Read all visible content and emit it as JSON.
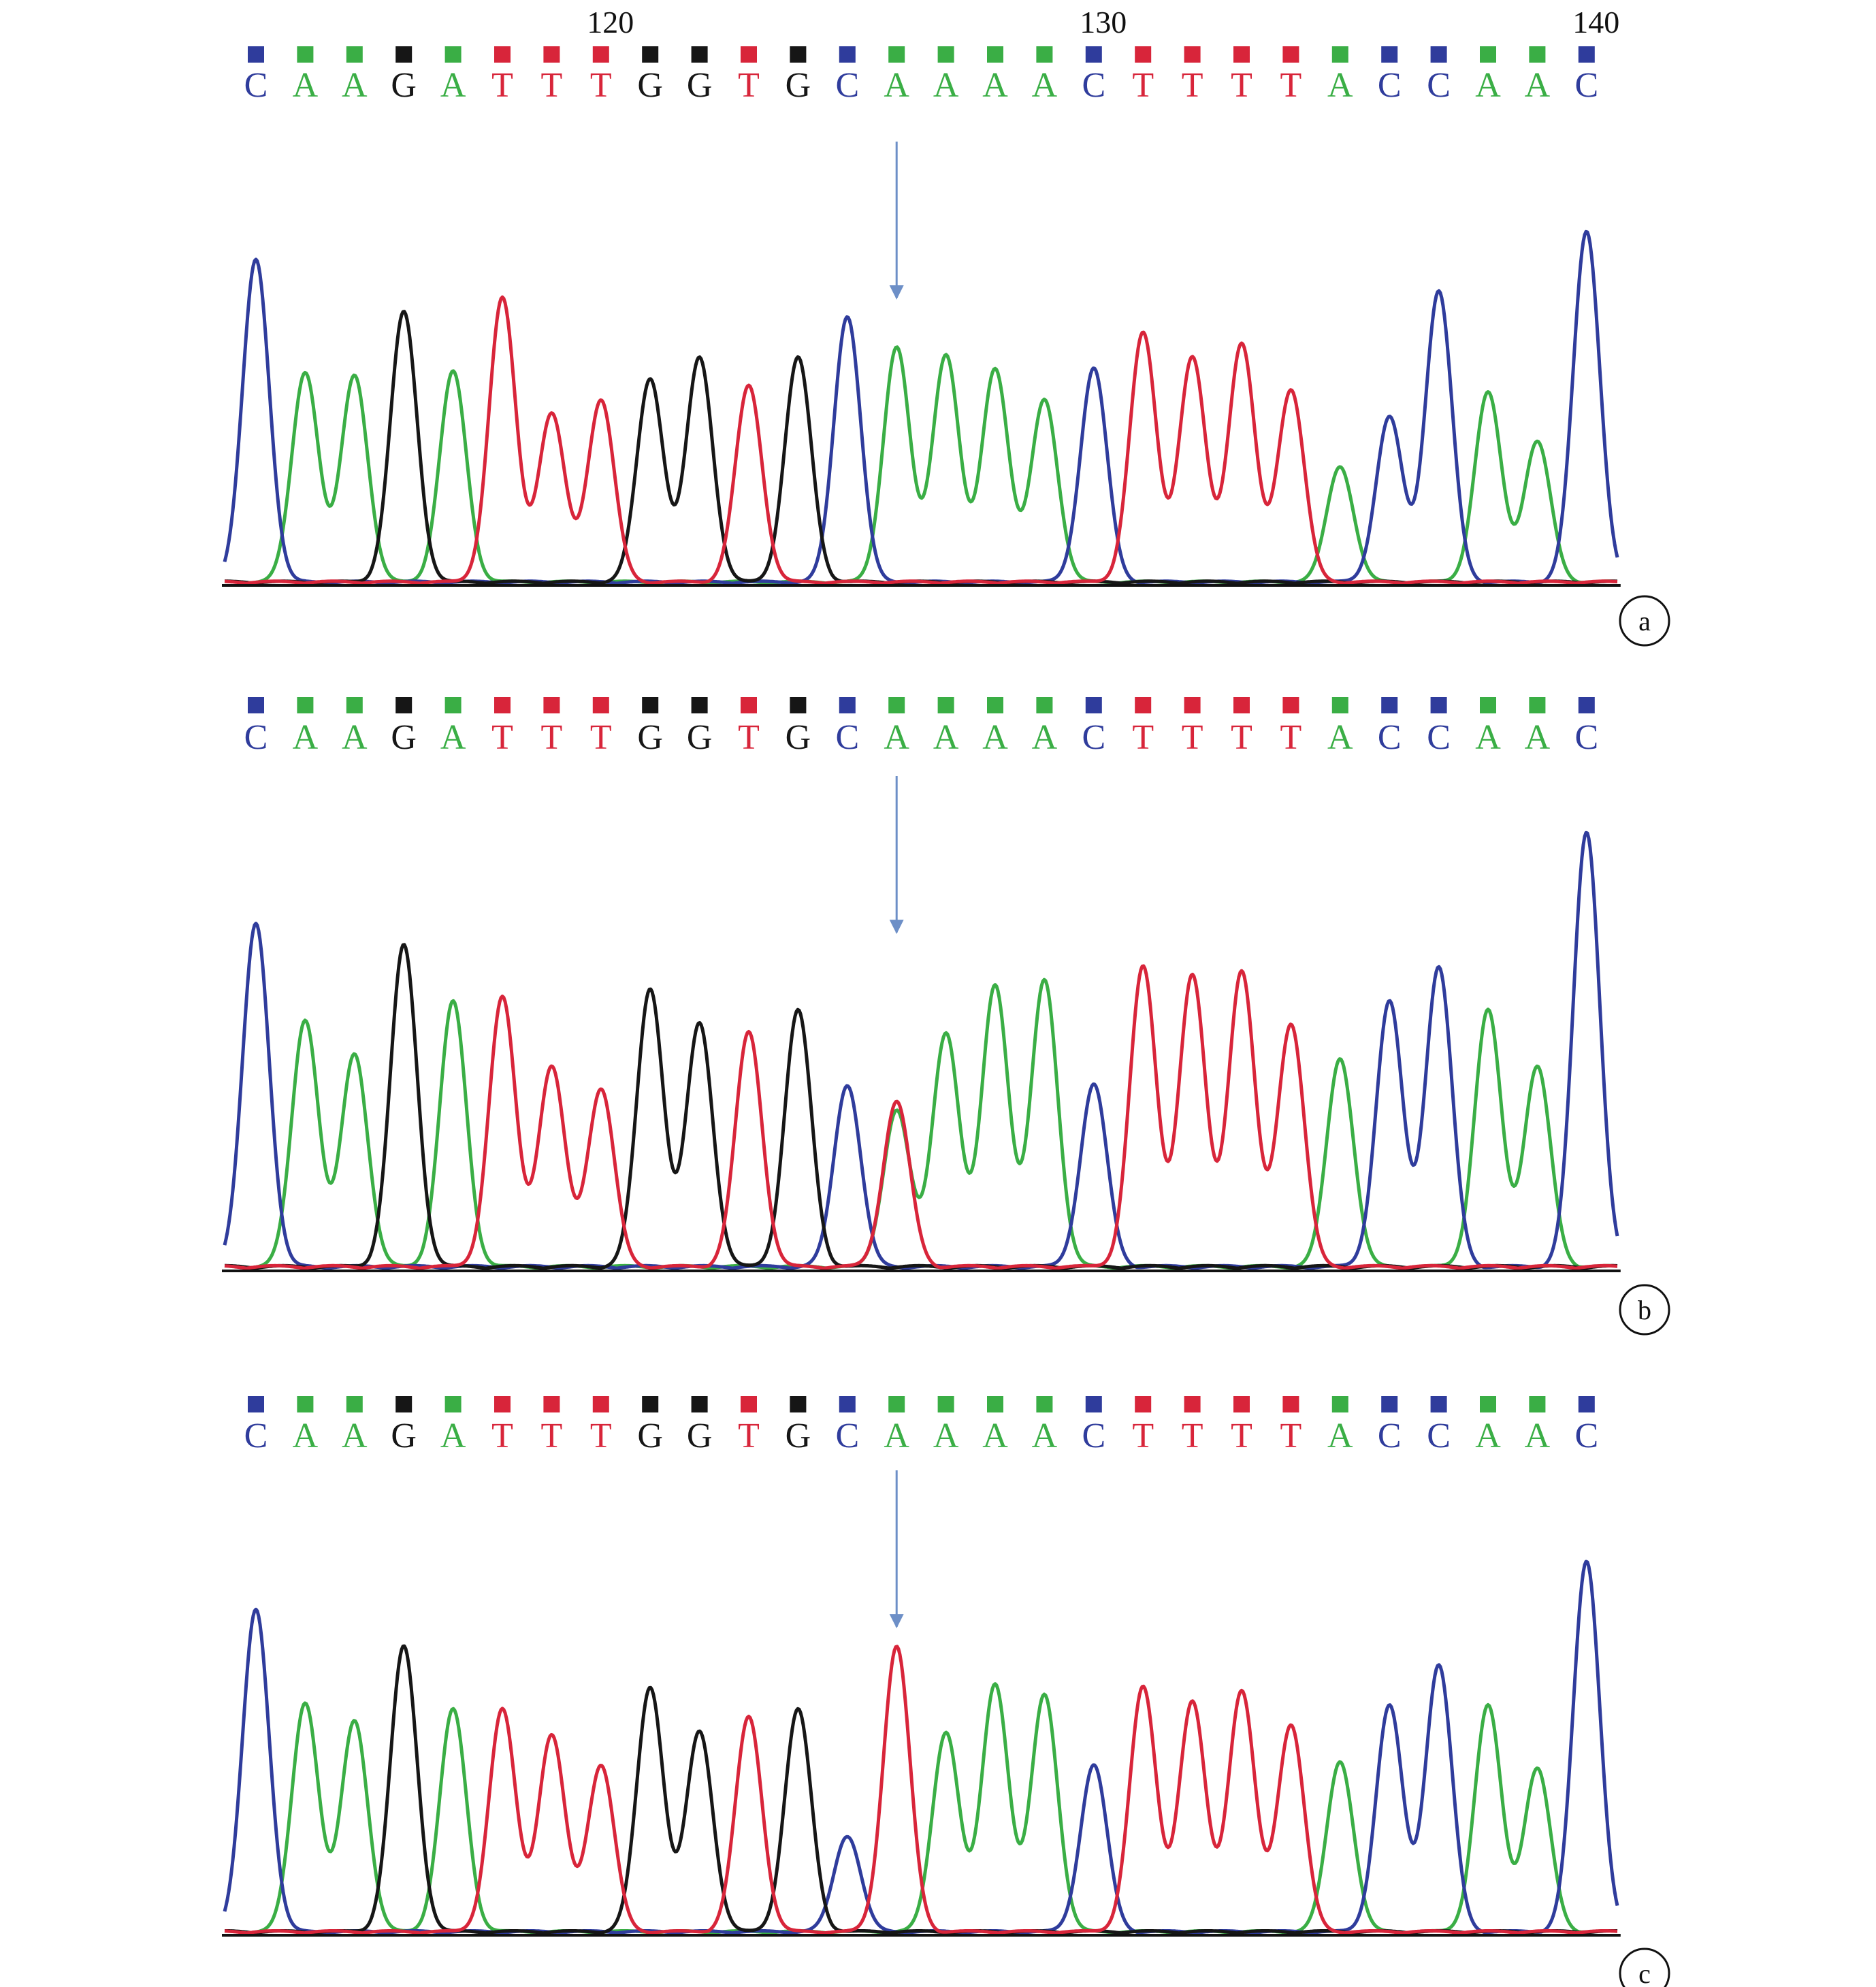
{
  "chart_data": [
    {
      "type": "chromatogram",
      "panel_label": "a",
      "sequence": [
        "C",
        "A",
        "A",
        "G",
        "A",
        "T",
        "T",
        "T",
        "G",
        "G",
        "T",
        "G",
        "C",
        "A",
        "A",
        "A",
        "A",
        "C",
        "T",
        "T",
        "T",
        "T",
        "A",
        "C",
        "C",
        "A",
        "A",
        "C"
      ],
      "position_ticks": [
        {
          "position": 120,
          "index": 7
        },
        {
          "position": 130,
          "index": 17
        },
        {
          "position": 140,
          "index": 27
        }
      ],
      "arrow_index": 13,
      "peak_heights": [
        0.92,
        0.6,
        0.59,
        0.77,
        0.6,
        0.81,
        0.48,
        0.52,
        0.58,
        0.64,
        0.56,
        0.64,
        0.76,
        0.67,
        0.65,
        0.61,
        0.52,
        0.61,
        0.71,
        0.64,
        0.68,
        0.55,
        0.33,
        0.47,
        0.83,
        0.54,
        0.4,
        1.0
      ],
      "secondary_peaks": [],
      "trough_heights": [
        0.02,
        0.07,
        0.06,
        0.03,
        0.04,
        0.07,
        0.07,
        0.05,
        0.08,
        0.05,
        0.04,
        0.03,
        0.07,
        0.11,
        0.13,
        0.1,
        0.03,
        0.14,
        0.12,
        0.14,
        0.13,
        0.03,
        0.06,
        0.03,
        0.07,
        0.06,
        0.03
      ]
    },
    {
      "type": "chromatogram",
      "panel_label": "b",
      "sequence": [
        "C",
        "A",
        "A",
        "G",
        "A",
        "T",
        "T",
        "T",
        "G",
        "G",
        "T",
        "G",
        "C",
        "A",
        "A",
        "A",
        "A",
        "C",
        "T",
        "T",
        "T",
        "T",
        "A",
        "C",
        "C",
        "A",
        "A",
        "C"
      ],
      "position_ticks": [],
      "arrow_index": 13,
      "peak_heights": [
        0.79,
        0.57,
        0.49,
        0.74,
        0.61,
        0.62,
        0.46,
        0.41,
        0.64,
        0.56,
        0.54,
        0.59,
        0.42,
        0.36,
        0.54,
        0.65,
        0.66,
        0.42,
        0.69,
        0.67,
        0.68,
        0.56,
        0.48,
        0.61,
        0.69,
        0.59,
        0.46,
        1.0
      ],
      "secondary_peaks": [
        {
          "index": 13,
          "base": "T",
          "height": 0.38
        }
      ],
      "trough_heights": [
        0.02,
        0.05,
        0.04,
        0.03,
        0.05,
        0.05,
        0.05,
        0.04,
        0.05,
        0.05,
        0.05,
        0.04,
        0.06,
        0.05,
        0.05,
        0.05,
        0.05,
        0.04,
        0.05,
        0.05,
        0.05,
        0.05,
        0.05,
        0.05,
        0.05,
        0.05,
        0.04
      ]
    },
    {
      "type": "chromatogram",
      "panel_label": "c",
      "sequence": [
        "C",
        "A",
        "A",
        "G",
        "A",
        "T",
        "T",
        "T",
        "G",
        "G",
        "T",
        "G",
        "C",
        "A",
        "A",
        "A",
        "A",
        "C",
        "T",
        "T",
        "T",
        "T",
        "A",
        "C",
        "C",
        "A",
        "A",
        "C"
      ],
      "position_ticks": [],
      "arrow_index": 13,
      "peak_heights": [
        0.87,
        0.62,
        0.57,
        0.77,
        0.6,
        0.6,
        0.53,
        0.45,
        0.66,
        0.54,
        0.58,
        0.6,
        0.26,
        0.77,
        0.54,
        0.67,
        0.64,
        0.45,
        0.66,
        0.62,
        0.65,
        0.56,
        0.46,
        0.61,
        0.72,
        0.61,
        0.44,
        1.0
      ],
      "base_overrides": [
        {
          "index": 13,
          "base": "T"
        }
      ],
      "secondary_peaks": [],
      "trough_heights": [
        0.02,
        0.05,
        0.04,
        0.03,
        0.05,
        0.05,
        0.05,
        0.04,
        0.05,
        0.05,
        0.05,
        0.04,
        0.05,
        0.05,
        0.05,
        0.05,
        0.05,
        0.04,
        0.05,
        0.05,
        0.05,
        0.05,
        0.05,
        0.05,
        0.05,
        0.05,
        0.04
      ]
    }
  ],
  "colors": {
    "A": "#3aae45",
    "C": "#2f3c9c",
    "G": "#161616",
    "T": "#d8253a",
    "arrow": "#6d8fc7",
    "baseline": "#111111"
  }
}
